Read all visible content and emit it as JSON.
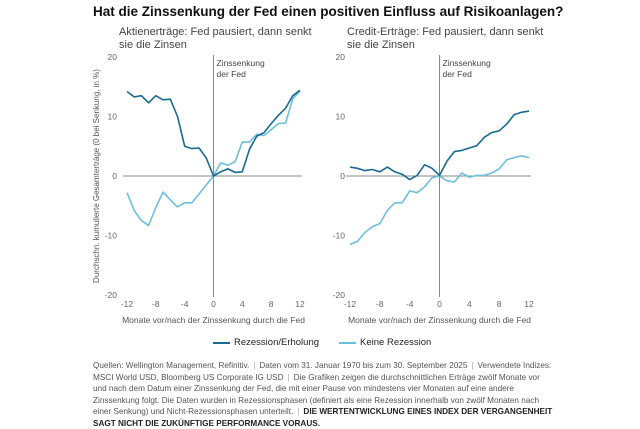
{
  "title": "Hat die Zinssenkung der Fed einen positiven Einfluss auf Risikoanlagen?",
  "colors": {
    "rezession": "#1a6a92",
    "keine_rezession": "#6dbfdc",
    "axis": "#888888"
  },
  "legend": {
    "rezession_label": "Rezession/Erholung",
    "keine_rezession_label": "Keine Rezession"
  },
  "footnote": {
    "parts": [
      "Quellen: Wellington Management, Refinitiv.",
      "Daten vom 31. Januar 1970 bis zum 30. September 2025",
      "Verwendete Indizes: MSCI World USD, Bloomberg US Corporate IG USD",
      "Die Grafiken zeigen die durchschnittlichen Erträge zwölf Monate vor und nach dem Datum einer Zinssenkung der Fed, die mit einer Pause von mindestens vier Monaten auf eine andere Zinssenkung folgt. Die Daten wurden in Rezessionsphasen (definiert als eine Rezession innerhalb von zwölf Monaten nach einer Senkung) und Nicht-Rezessionsphasen unterteilt."
    ],
    "disclaimer": "DIE WERTENTWICKLUNG EINES INDEX DER VERGANGENHEIT SAGT NICHT DIE ZUKÜNFTIGE PERFORMANCE VORAUS."
  },
  "chart_data": [
    {
      "type": "line",
      "title": "Aktienerträge: Fed pausiert, dann senkt sie die Zinsen",
      "xlabel": "Monate vor/nach der Zinssenkung durch die Fed",
      "ylabel": "Durchschn. kumulierte Gesamterträge (0 bei Senkung, in %)",
      "annotation": "Zinssenkung der Fed",
      "annotation_lines": [
        "Zinssenkung",
        "der Fed"
      ],
      "xlim": [
        -12,
        12
      ],
      "ylim": [
        -20,
        20
      ],
      "x_ticks": [
        -12,
        -8,
        -4,
        0,
        4,
        8,
        12
      ],
      "y_ticks": [
        20,
        10,
        0,
        -10,
        -20
      ],
      "x_tick_labels": [
        "-12",
        "-8",
        "-4",
        "0",
        "4",
        "8",
        "12"
      ],
      "y_tick_labels": [
        "20",
        "10",
        "0",
        "-10",
        "-20"
      ],
      "x": [
        -12,
        -11,
        -10,
        -9,
        -8,
        -7,
        -6,
        -5,
        -4,
        -3,
        -2,
        -1,
        0,
        1,
        2,
        3,
        4,
        5,
        6,
        7,
        8,
        9,
        10,
        11,
        12
      ],
      "series": [
        {
          "name": "Rezession/Erholung",
          "values": [
            14.2,
            13.3,
            13.5,
            12.3,
            13.5,
            12.8,
            12.9,
            10.0,
            5.0,
            4.6,
            4.7,
            3.0,
            0.0,
            0.7,
            1.2,
            0.6,
            0.7,
            4.5,
            6.7,
            7.3,
            8.8,
            10.2,
            11.4,
            13.5,
            14.4
          ]
        },
        {
          "name": "Keine Rezession",
          "values": [
            -2.8,
            -5.8,
            -7.5,
            -8.3,
            -5.3,
            -2.7,
            -4.0,
            -5.2,
            -4.5,
            -4.5,
            -3.0,
            -1.5,
            0.0,
            2.2,
            1.8,
            2.4,
            5.7,
            5.7,
            7.0,
            6.8,
            7.8,
            8.8,
            8.9,
            13.0,
            14.3
          ]
        }
      ],
      "grid": false,
      "legend": "bottom-center"
    },
    {
      "type": "line",
      "title": "Credit-Erträge: Fed pausiert, dann senkt sie die Zinsen",
      "xlabel": "Monate vor/nach der Zinssenkung durch die Fed",
      "ylabel": "",
      "annotation": "Zinssenkung der Fed",
      "annotation_lines": [
        "Zinssenkung",
        "der Fed"
      ],
      "xlim": [
        -12,
        12
      ],
      "ylim": [
        -20,
        20
      ],
      "x_ticks": [
        -12,
        -8,
        -4,
        0,
        4,
        8,
        12
      ],
      "y_ticks": [
        20,
        10,
        0,
        -10,
        -20
      ],
      "x_tick_labels": [
        "-12",
        "-8",
        "-4",
        "0",
        "4",
        "8",
        "12"
      ],
      "y_tick_labels": [
        "20",
        "10",
        "0",
        "-10",
        "-20"
      ],
      "x": [
        -12,
        -11,
        -10,
        -9,
        -8,
        -7,
        -6,
        -5,
        -4,
        -3,
        -2,
        -1,
        0,
        1,
        2,
        3,
        4,
        5,
        6,
        7,
        8,
        9,
        10,
        11,
        12
      ],
      "series": [
        {
          "name": "Rezession/Erholung",
          "values": [
            1.5,
            1.3,
            0.9,
            1.1,
            0.7,
            1.5,
            0.7,
            0.3,
            -0.6,
            0.1,
            1.9,
            1.3,
            0.1,
            2.5,
            4.1,
            4.3,
            4.7,
            5.1,
            6.5,
            7.3,
            7.6,
            8.7,
            10.3,
            10.7,
            10.9
          ]
        },
        {
          "name": "Keine Rezession",
          "values": [
            -11.5,
            -11.0,
            -9.5,
            -8.5,
            -8.0,
            -5.8,
            -4.5,
            -4.5,
            -2.5,
            -2.8,
            -1.8,
            -0.3,
            0.0,
            -0.8,
            -1.0,
            0.5,
            -0.2,
            0.1,
            0.1,
            0.5,
            1.2,
            2.7,
            3.1,
            3.4,
            3.1
          ]
        }
      ],
      "grid": false,
      "legend": "bottom-center"
    }
  ]
}
